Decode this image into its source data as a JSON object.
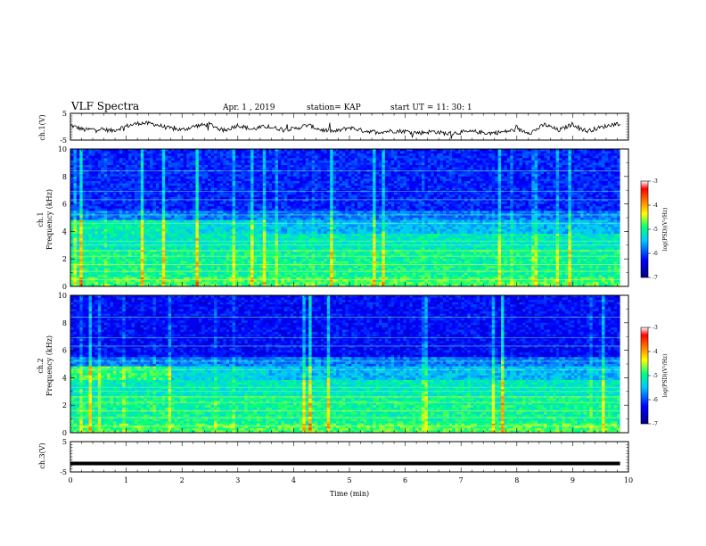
{
  "header": {
    "title": "VLF Spectra",
    "date": "Apr. 1 , 2019",
    "station": "station= KAP",
    "start_ut": "start UT =  11: 30: 1"
  },
  "chart_data": [
    {
      "type": "line",
      "panel": "ch1-waveform",
      "ylabel": "ch.1(V)",
      "ylim": [
        -5,
        5
      ],
      "yticks": [
        "5",
        "-5"
      ],
      "x": [
        0,
        0.25,
        0.5,
        0.75,
        1,
        1.25,
        1.5,
        1.75,
        2,
        2.25,
        2.5,
        2.75,
        3,
        3.25,
        3.5,
        3.75,
        4,
        4.25,
        4.5,
        4.75,
        5,
        5.25,
        5.5,
        5.75,
        6,
        6.25,
        6.5,
        6.75,
        7,
        7.25,
        7.5,
        7.75,
        8,
        8.25,
        8.5,
        8.75,
        9,
        9.25,
        9.5,
        9.75,
        9.85
      ],
      "y": [
        0.5,
        -1.2,
        -0.8,
        -1.5,
        0.2,
        1.4,
        1.0,
        -0.5,
        -1.2,
        0.3,
        0.9,
        -1.6,
        0.6,
        -1.0,
        0.1,
        -0.8,
        -0.9,
        0.6,
        -1.2,
        -1.8,
        -0.3,
        -1.5,
        -2.0,
        -1.6,
        -1.7,
        -2.3,
        -1.8,
        -2.6,
        -2.1,
        -1.9,
        -2.4,
        -2.0,
        -1.1,
        -2.2,
        0.8,
        -1.4,
        1.0,
        -1.7,
        -0.3,
        1.0,
        1.2
      ]
    },
    {
      "type": "heatmap",
      "panel": "ch1-spectrogram",
      "ylabel": "ch.1\nFrequency (kHz)",
      "ylim": [
        0,
        10
      ],
      "yticks": [
        "0",
        "2",
        "4",
        "6",
        "8",
        "10"
      ],
      "colorbar": {
        "label": "log(PSD)(V²/Hz)",
        "range": [
          -7,
          -3
        ],
        "ticks": [
          "-3",
          "-4",
          "-5",
          "-6",
          "-7"
        ]
      }
    },
    {
      "type": "heatmap",
      "panel": "ch2-spectrogram",
      "ylabel": "ch.2\nFrequency (kHz)",
      "ylim": [
        0,
        10
      ],
      "yticks": [
        "0",
        "2",
        "4",
        "6",
        "8",
        "10"
      ],
      "colorbar": {
        "label": "log(PSD)(V²/Hz)",
        "range": [
          -7,
          -3
        ],
        "ticks": [
          "-3",
          "-4",
          "-5",
          "-6",
          "-7"
        ]
      }
    },
    {
      "type": "line",
      "panel": "ch3-waveform",
      "ylabel": "ch.3(V)",
      "ylim": [
        -5,
        5
      ],
      "yticks": [
        "5",
        "-5"
      ],
      "x": [
        0,
        9.85
      ],
      "y": [
        -2.2,
        -2.2
      ]
    }
  ],
  "x_axis": {
    "label": "Time (min)",
    "range": [
      0,
      10
    ],
    "ticks": [
      "0",
      "1",
      "2",
      "3",
      "4",
      "5",
      "6",
      "7",
      "8",
      "9",
      "10"
    ]
  },
  "colors": {
    "background_low": "#00008b",
    "mid": "#00c8c8",
    "high": "#ffff00",
    "peak": "#ff0000"
  }
}
